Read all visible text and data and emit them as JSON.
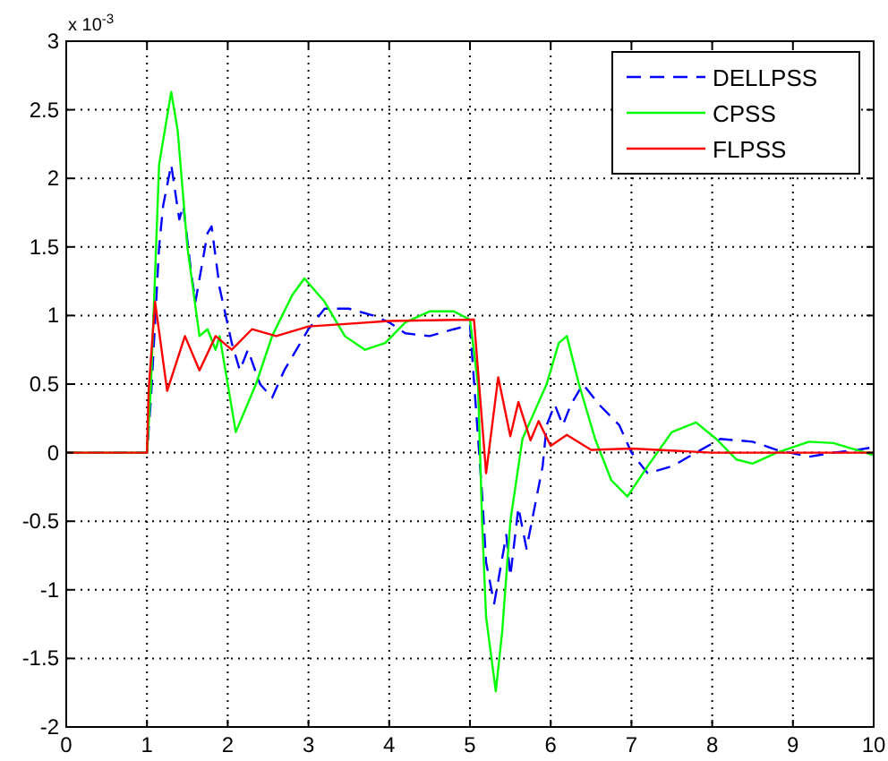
{
  "chart_data": {
    "type": "line",
    "annotations": [
      "x 10$^{-3}$"
    ],
    "xlim": [
      0,
      10
    ],
    "ylim": [
      -2,
      3
    ],
    "xticks": [
      0,
      1,
      2,
      3,
      4,
      5,
      6,
      7,
      8,
      9,
      10
    ],
    "yticks": [
      -2,
      -1.5,
      -1,
      -0.5,
      0,
      0.5,
      1,
      1.5,
      2,
      2.5,
      3
    ],
    "grid": true,
    "legend": "top right",
    "marker": "none",
    "series": [
      {
        "name": "DELLPSS",
        "color": "#0000ff",
        "line_style": "dashed",
        "x": [
          0,
          1,
          1.05,
          1.15,
          1.2,
          1.3,
          1.4,
          1.45,
          1.55,
          1.6,
          1.75,
          1.8,
          1.9,
          2.05,
          2.15,
          2.25,
          2.4,
          2.55,
          2.7,
          2.85,
          3,
          3.2,
          3.5,
          3.8,
          4,
          4.2,
          4.5,
          4.8,
          5,
          5.15,
          5.2,
          5.3,
          5.45,
          5.5,
          5.6,
          5.7,
          5.9,
          5.95,
          6.05,
          6.15,
          6.25,
          6.4,
          6.6,
          6.85,
          7,
          7.2,
          7.5,
          7.8,
          8.1,
          8.5,
          8.8,
          9.2,
          9.5,
          9.8,
          10
        ],
        "values": [
          0,
          0,
          0.4,
          1.5,
          1.8,
          2.1,
          1.7,
          1.8,
          1.3,
          1.1,
          1.6,
          1.65,
          1.2,
          0.8,
          0.6,
          0.75,
          0.5,
          0.4,
          0.6,
          0.75,
          0.9,
          1.05,
          1.05,
          1,
          0.95,
          0.87,
          0.85,
          0.9,
          0.93,
          -0.3,
          -0.8,
          -1.1,
          -0.6,
          -0.9,
          -0.4,
          -0.7,
          -0.1,
          0.2,
          0.35,
          0.2,
          0.35,
          0.5,
          0.35,
          0.2,
          0,
          -0.15,
          -0.1,
          0,
          0.1,
          0.08,
          0.02,
          -0.03,
          0,
          0.02,
          0.04
        ]
      },
      {
        "name": "CPSS",
        "color": "#00ff00",
        "line_style": "solid",
        "x": [
          0,
          1,
          1.05,
          1.15,
          1.3,
          1.38,
          1.5,
          1.65,
          1.75,
          1.85,
          1.9,
          2,
          2.1,
          2.35,
          2.55,
          2.8,
          2.95,
          3.2,
          3.45,
          3.7,
          3.95,
          4.2,
          4.5,
          4.8,
          5,
          5.1,
          5.15,
          5.2,
          5.32,
          5.4,
          5.5,
          5.65,
          5.8,
          5.95,
          6.1,
          6.2,
          6.35,
          6.55,
          6.75,
          6.95,
          7.2,
          7.5,
          7.8,
          8.05,
          8.3,
          8.5,
          8.8,
          9.2,
          9.5,
          9.9,
          10
        ],
        "values": [
          0,
          0,
          0.5,
          2.1,
          2.63,
          2.35,
          1.5,
          0.85,
          0.9,
          0.75,
          0.85,
          0.5,
          0.15,
          0.5,
          0.85,
          1.15,
          1.27,
          1.1,
          0.85,
          0.75,
          0.8,
          0.95,
          1.03,
          1.03,
          0.97,
          0.5,
          -0.5,
          -1.2,
          -1.74,
          -1.3,
          -0.5,
          0.1,
          0.3,
          0.5,
          0.8,
          0.85,
          0.5,
          0.1,
          -0.2,
          -0.32,
          -0.1,
          0.15,
          0.22,
          0.1,
          -0.05,
          -0.08,
          0,
          0.08,
          0.07,
          0,
          -0.02
        ]
      },
      {
        "name": "FLPSS",
        "color": "#ff0000",
        "line_style": "solid",
        "x": [
          0,
          1,
          1.02,
          1.1,
          1.25,
          1.47,
          1.65,
          1.85,
          2.05,
          2.3,
          2.6,
          3,
          3.5,
          4,
          5.05,
          5.2,
          5.35,
          5.5,
          5.6,
          5.75,
          5.85,
          6,
          6.2,
          6.5,
          7,
          8,
          10
        ],
        "values": [
          0,
          0,
          0.45,
          1.1,
          0.45,
          0.85,
          0.6,
          0.85,
          0.75,
          0.9,
          0.85,
          0.92,
          0.94,
          0.96,
          0.97,
          -0.15,
          0.55,
          0.12,
          0.37,
          0.09,
          0.23,
          0.05,
          0.13,
          0.02,
          0.03,
          0,
          0
        ]
      }
    ]
  }
}
